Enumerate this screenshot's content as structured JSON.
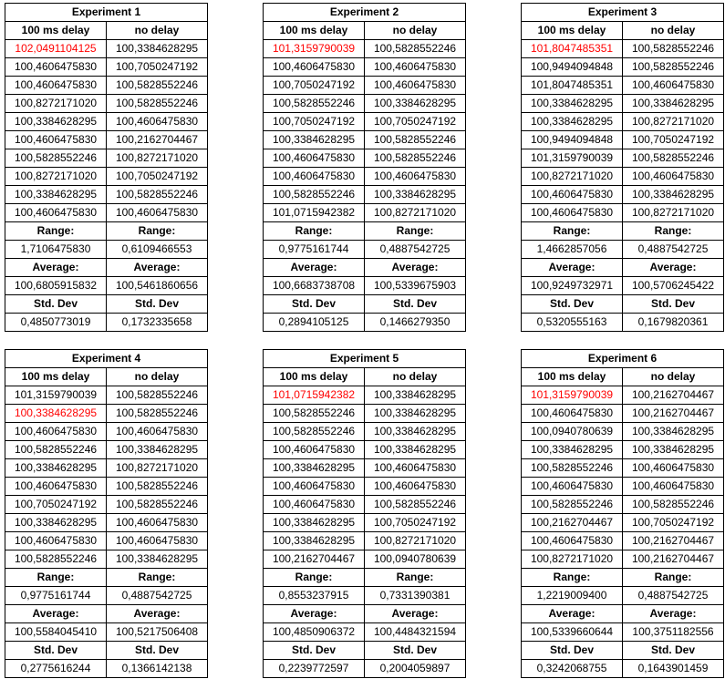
{
  "experiments": [
    {
      "title": "Experiment 1",
      "col1_header": "100 ms delay",
      "col2_header": "no delay",
      "rows": [
        [
          "102,0491104125",
          "100,3384628295"
        ],
        [
          "100,4606475830",
          "100,7050247192"
        ],
        [
          "100,4606475830",
          "100,5828552246"
        ],
        [
          "100,8272171020",
          "100,5828552246"
        ],
        [
          "100,3384628295",
          "100,4606475830"
        ],
        [
          "100,4606475830",
          "100,2162704467"
        ],
        [
          "100,5828552246",
          "100,8272171020"
        ],
        [
          "100,8272171020",
          "100,7050247192"
        ],
        [
          "100,3384628295",
          "100,5828552246"
        ],
        [
          "100,4606475830",
          "100,4606475830"
        ]
      ],
      "red_row": 0,
      "range_label": "Range:",
      "range": [
        "1,7106475830",
        "0,6109466553"
      ],
      "average_label": "Average:",
      "average": [
        "100,6805915832",
        "100,5461860656"
      ],
      "std_label": "Std. Dev",
      "std": [
        "0,4850773019",
        "0,1732335658"
      ]
    },
    {
      "title": "Experiment 2",
      "col1_header": "100 ms delay",
      "col2_header": "no delay",
      "rows": [
        [
          "101,3159790039",
          "100,5828552246"
        ],
        [
          "100,4606475830",
          "100,4606475830"
        ],
        [
          "100,7050247192",
          "100,4606475830"
        ],
        [
          "100,5828552246",
          "100,3384628295"
        ],
        [
          "100,7050247192",
          "100,7050247192"
        ],
        [
          "100,3384628295",
          "100,5828552246"
        ],
        [
          "100,4606475830",
          "100,5828552246"
        ],
        [
          "100,4606475830",
          "100,4606475830"
        ],
        [
          "100,5828552246",
          "100,3384628295"
        ],
        [
          "101,0715942382",
          "100,8272171020"
        ]
      ],
      "red_row": 0,
      "range_label": "Range:",
      "range": [
        "0,9775161744",
        "0,4887542725"
      ],
      "average_label": "Average:",
      "average": [
        "100,6683738708",
        "100,5339675903"
      ],
      "std_label": "Std. Dev",
      "std": [
        "0,2894105125",
        "0,1466279350"
      ]
    },
    {
      "title": "Experiment 3",
      "col1_header": "100 ms delay",
      "col2_header": "no delay",
      "rows": [
        [
          "101,8047485351",
          "100,5828552246"
        ],
        [
          "100,9494094848",
          "100,5828552246"
        ],
        [
          "101,8047485351",
          "100,4606475830"
        ],
        [
          "100,3384628295",
          "100,3384628295"
        ],
        [
          "100,3384628295",
          "100,8272171020"
        ],
        [
          "100,9494094848",
          "100,7050247192"
        ],
        [
          "101,3159790039",
          "100,5828552246"
        ],
        [
          "100,8272171020",
          "100,4606475830"
        ],
        [
          "100,4606475830",
          "100,3384628295"
        ],
        [
          "100,4606475830",
          "100,8272171020"
        ]
      ],
      "red_row": 0,
      "range_label": "Range:",
      "range": [
        "1,4662857056",
        "0,4887542725"
      ],
      "average_label": "Average:",
      "average": [
        "100,9249732971",
        "100,5706245422"
      ],
      "std_label": "Std. Dev",
      "std": [
        "0,5320555163",
        "0,1679820361"
      ]
    },
    {
      "title": "Experiment 4",
      "col1_header": "100 ms delay",
      "col2_header": "no delay",
      "rows": [
        [
          "101,3159790039",
          "100,5828552246"
        ],
        [
          "100,3384628295",
          "100,5828552246"
        ],
        [
          "100,4606475830",
          "100,4606475830"
        ],
        [
          "100,5828552246",
          "100,3384628295"
        ],
        [
          "100,3384628295",
          "100,8272171020"
        ],
        [
          "100,4606475830",
          "100,5828552246"
        ],
        [
          "100,7050247192",
          "100,5828552246"
        ],
        [
          "100,3384628295",
          "100,4606475830"
        ],
        [
          "100,4606475830",
          "100,4606475830"
        ],
        [
          "100,5828552246",
          "100,3384628295"
        ]
      ],
      "red_row": 1,
      "range_label": "Range:",
      "range": [
        "0,9775161744",
        "0,4887542725"
      ],
      "average_label": "Average:",
      "average": [
        "100,5584045410",
        "100,5217506408"
      ],
      "std_label": "Std. Dev",
      "std": [
        "0,2775616244",
        "0,1366142138"
      ]
    },
    {
      "title": "Experiment 5",
      "col1_header": "100 ms delay",
      "col2_header": "no delay",
      "rows": [
        [
          "101,0715942382",
          "100,3384628295"
        ],
        [
          "100,5828552246",
          "100,3384628295"
        ],
        [
          "100,5828552246",
          "100,3384628295"
        ],
        [
          "100,4606475830",
          "100,3384628295"
        ],
        [
          "100,3384628295",
          "100,4606475830"
        ],
        [
          "100,4606475830",
          "100,4606475830"
        ],
        [
          "100,4606475830",
          "100,5828552246"
        ],
        [
          "100,3384628295",
          "100,7050247192"
        ],
        [
          "100,3384628295",
          "100,8272171020"
        ],
        [
          "100,2162704467",
          "100,0940780639"
        ]
      ],
      "red_row": 0,
      "range_label": "Range:",
      "range": [
        "0,8553237915",
        "0,7331390381"
      ],
      "average_label": "Average:",
      "average": [
        "100,4850906372",
        "100,4484321594"
      ],
      "std_label": "Std. Dev",
      "std": [
        "0,2239772597",
        "0,2004059897"
      ]
    },
    {
      "title": "Experiment 6",
      "col1_header": "100 ms delay",
      "col2_header": "no delay",
      "rows": [
        [
          "101,3159790039",
          "100,2162704467"
        ],
        [
          "100,4606475830",
          "100,2162704467"
        ],
        [
          "100,0940780639",
          "100,3384628295"
        ],
        [
          "100,3384628295",
          "100,3384628295"
        ],
        [
          "100,5828552246",
          "100,4606475830"
        ],
        [
          "100,4606475830",
          "100,4606475830"
        ],
        [
          "100,5828552246",
          "100,5828552246"
        ],
        [
          "100,2162704467",
          "100,7050247192"
        ],
        [
          "100,4606475830",
          "100,2162704467"
        ],
        [
          "100,8272171020",
          "100,2162704467"
        ]
      ],
      "red_row": 0,
      "range_label": "Range:",
      "range": [
        "1,2219009400",
        "0,4887542725"
      ],
      "average_label": "Average:",
      "average": [
        "100,5339660644",
        "100,3751182556"
      ],
      "std_label": "Std. Dev",
      "std": [
        "0,3242068755",
        "0,1643901459"
      ]
    }
  ],
  "colors": {
    "highlight": "#ff0000",
    "border": "#000000",
    "text": "#000000",
    "background": "#ffffff"
  }
}
